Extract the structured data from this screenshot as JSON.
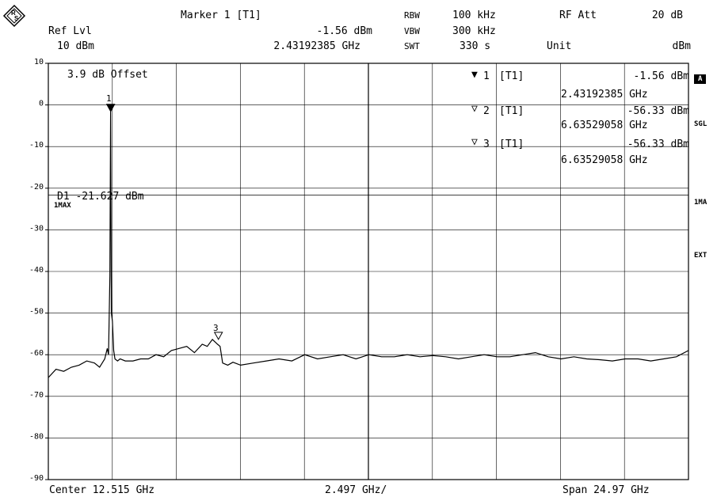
{
  "header": {
    "ref_lvl_label": "Ref Lvl",
    "ref_lvl_value": "10 dBm",
    "marker_title": "Marker 1 [T1]",
    "marker_level": "-1.56 dBm",
    "marker_freq": "2.43192385 GHz",
    "rbw_label": "RBW",
    "rbw_value": "100 kHz",
    "vbw_label": "VBW",
    "vbw_value": "300 kHz",
    "swt_label": "SWT",
    "swt_value": "330 s",
    "rf_att_label": "RF Att",
    "rf_att_value": "20 dB",
    "unit_label": "Unit",
    "unit_value": "dBm"
  },
  "plot_text": {
    "offset": "3.9 dB Offset",
    "d1_line": "D1 -21.627 dBm",
    "trace_mode": "1MAX",
    "marker1_num": "1",
    "marker3_num": "3"
  },
  "marker_table": [
    {
      "id": "1",
      "tag": "[T1]",
      "level": "-1.56 dBm",
      "freq": "2.43192385 GHz"
    },
    {
      "id": "2",
      "tag": "[T1]",
      "level": "-56.33 dBm",
      "freq": "6.63529058 GHz"
    },
    {
      "id": "3",
      "tag": "[T1]",
      "level": "-56.33 dBm",
      "freq": "6.63529058 GHz"
    }
  ],
  "sidebar": {
    "a_label": "A",
    "sgl_label": "SGL",
    "ma_label": "1MA",
    "ext_label": "EXT"
  },
  "footer": {
    "center": "Center 12.515 GHz",
    "div": "2.497 GHz/",
    "span": "Span 24.97 GHz"
  },
  "chart_data": {
    "type": "line",
    "xlabel": "",
    "ylabel": "",
    "xlim": [
      0,
      24.97
    ],
    "ylim": [
      -90,
      10
    ],
    "y_ticks": [
      10,
      0,
      -10,
      -20,
      -30,
      -40,
      -50,
      -60,
      -70,
      -80,
      -90
    ],
    "grid": true,
    "display_line_dBm": -21.627,
    "series": [
      {
        "x": [
          0,
          0.3,
          0.6,
          0.9,
          1.2,
          1.5,
          1.8,
          2.0,
          2.1,
          2.2,
          2.3,
          2.35,
          2.4,
          2.43,
          2.46,
          2.5,
          2.55,
          2.6,
          2.7,
          2.8,
          3.0,
          3.3,
          3.6,
          3.9,
          4.2,
          4.5,
          4.8,
          5.1,
          5.4,
          5.7,
          6.0,
          6.2,
          6.4,
          6.6,
          6.7,
          6.8,
          7.0,
          7.2,
          7.5,
          8.0,
          8.5,
          9.0,
          9.5,
          10.0,
          10.5,
          11.0,
          11.5,
          12.0,
          12.5,
          13.0,
          13.5,
          14.0,
          14.5,
          15.0,
          15.5,
          16.0,
          16.5,
          17.0,
          17.5,
          18.0,
          18.5,
          19.0,
          19.5,
          20.0,
          20.5,
          21.0,
          21.5,
          22.0,
          22.5,
          23.0,
          23.5,
          24.0,
          24.5,
          24.97
        ],
        "y": [
          -65.5,
          -63.5,
          -64,
          -63,
          -62.5,
          -61.5,
          -62,
          -63,
          -62,
          -61,
          -58.5,
          -60,
          -41,
          -1.56,
          -50,
          -52,
          -59,
          -61,
          -61.5,
          -61,
          -61.5,
          -61.5,
          -61,
          -61,
          -60,
          -60.5,
          -59,
          -58.5,
          -58,
          -59.5,
          -57.5,
          -58,
          -56.33,
          -57.5,
          -58,
          -62,
          -62.5,
          -61.8,
          -62.5,
          -62,
          -61.5,
          -61,
          -61.5,
          -60,
          -61,
          -60.5,
          -60,
          -61,
          -60,
          -60.5,
          -60.5,
          -60,
          -60.5,
          -60.2,
          -60.5,
          -61,
          -60.5,
          -60,
          -60.5,
          -60.5,
          -60,
          -59.5,
          -60.5,
          -61,
          -60.5,
          -61,
          -61.2,
          -61.5,
          -61,
          -61,
          -61.5,
          -61,
          -60.5,
          -59
        ]
      }
    ],
    "markers": [
      {
        "id": "1",
        "x": 2.43192385,
        "y": -1.56,
        "filled": true
      },
      {
        "id": "3",
        "x": 6.63529058,
        "y": -56.33,
        "filled": false
      }
    ]
  }
}
